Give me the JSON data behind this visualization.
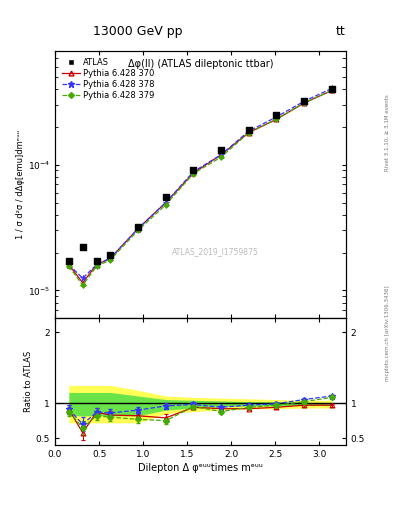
{
  "title_top": "13000 GeV pp",
  "title_top_right": "tt",
  "plot_title": "Δφ(ll) (ATLAS dileptonic ttbar)",
  "watermark": "ATLAS_2019_I1759875",
  "right_label_top": "Rivet 3.1.10, ≥ 3.1M events",
  "right_label_bottom": "mcplots.cern.ch [arXiv:1306.3436]",
  "ylabel_main": "1 / σ d²σ / dΔφ[emu]dmᵉᵘᵘ",
  "ylabel_ratio": "Ratio to ATLAS",
  "xlabel": "Dilepton Δ φᵉᵘᵘtimes mᵉᵘᵘ",
  "atlas_x": [
    0.157,
    0.314,
    0.471,
    0.628,
    0.942,
    1.257,
    1.571,
    1.885,
    2.199,
    2.513,
    2.827,
    3.142
  ],
  "atlas_y": [
    1.7e-05,
    2.2e-05,
    1.7e-05,
    1.9e-05,
    3.2e-05,
    5.5e-05,
    9e-05,
    0.00013,
    0.00019,
    0.00025,
    0.00032,
    0.0004
  ],
  "py370_x": [
    0.157,
    0.314,
    0.471,
    0.628,
    0.942,
    1.257,
    1.571,
    1.885,
    2.199,
    2.513,
    2.827,
    3.142
  ],
  "py370_y": [
    1.6e-05,
    1.15e-05,
    1.6e-05,
    1.8e-05,
    3.1e-05,
    5e-05,
    8.6e-05,
    0.00012,
    0.00018,
    0.00023,
    0.00031,
    0.00039
  ],
  "py378_x": [
    0.157,
    0.314,
    0.471,
    0.628,
    0.942,
    1.257,
    1.571,
    1.885,
    2.199,
    2.513,
    2.827,
    3.142
  ],
  "py378_y": [
    1.6e-05,
    1.25e-05,
    1.6e-05,
    1.8e-05,
    3.1e-05,
    5e-05,
    8.8e-05,
    0.00012,
    0.000185,
    0.00024,
    0.00032,
    0.000405
  ],
  "py379_x": [
    0.157,
    0.314,
    0.471,
    0.628,
    0.942,
    1.257,
    1.571,
    1.885,
    2.199,
    2.513,
    2.827,
    3.142
  ],
  "py379_y": [
    1.55e-05,
    1.1e-05,
    1.55e-05,
    1.75e-05,
    3e-05,
    4.8e-05,
    8.5e-05,
    0.000115,
    0.00018,
    0.00023,
    0.00031,
    0.00039
  ],
  "ratio_py370": [
    0.91,
    0.58,
    0.87,
    0.83,
    0.82,
    0.79,
    0.94,
    0.92,
    0.92,
    0.94,
    0.97,
    0.97
  ],
  "ratio_py378": [
    0.91,
    0.7,
    0.87,
    0.86,
    0.9,
    0.96,
    0.98,
    0.94,
    0.97,
    0.99,
    1.05,
    1.1
  ],
  "ratio_py379": [
    0.88,
    0.65,
    0.82,
    0.8,
    0.77,
    0.75,
    0.95,
    0.88,
    0.94,
    0.97,
    1.02,
    1.08
  ],
  "ratio_err_py370": [
    0.06,
    0.1,
    0.06,
    0.06,
    0.05,
    0.05,
    0.03,
    0.03,
    0.02,
    0.02,
    0.02,
    0.02
  ],
  "ratio_err_py378": [
    0.06,
    0.1,
    0.06,
    0.06,
    0.05,
    0.04,
    0.03,
    0.02,
    0.02,
    0.02,
    0.02,
    0.02
  ],
  "ratio_err_py379": [
    0.06,
    0.1,
    0.06,
    0.06,
    0.05,
    0.04,
    0.03,
    0.02,
    0.02,
    0.02,
    0.02,
    0.02
  ],
  "band_yellow_lo": [
    0.72,
    0.72,
    0.72,
    0.72,
    0.72,
    0.85,
    0.88,
    0.9,
    0.92,
    0.92,
    0.93,
    0.93
  ],
  "band_yellow_hi": [
    1.25,
    1.25,
    1.25,
    1.25,
    1.18,
    1.1,
    1.08,
    1.07,
    1.06,
    1.05,
    1.04,
    1.04
  ],
  "band_green_lo": [
    0.82,
    0.82,
    0.82,
    0.82,
    0.82,
    0.9,
    0.93,
    0.95,
    0.96,
    0.96,
    0.97,
    0.97
  ],
  "band_green_hi": [
    1.15,
    1.15,
    1.15,
    1.15,
    1.1,
    1.05,
    1.04,
    1.03,
    1.02,
    1.02,
    1.01,
    1.01
  ],
  "color_py370": "#cc0000",
  "color_py378": "#3333ff",
  "color_py379": "#44aa00",
  "color_yellow": "#ffff44",
  "color_green": "#44dd44",
  "ylim_main": [
    6e-06,
    0.0008
  ],
  "ylim_ratio": [
    0.4,
    2.2
  ],
  "xlim": [
    0.0,
    3.3
  ]
}
